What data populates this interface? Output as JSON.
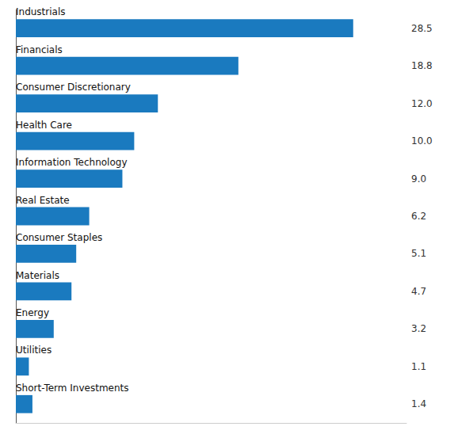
{
  "chart_data": {
    "type": "bar",
    "orientation": "horizontal",
    "categories": [
      "Industrials",
      "Financials",
      "Consumer Discretionary",
      "Health Care",
      "Information Technology",
      "Real Estate",
      "Consumer Staples",
      "Materials",
      "Energy",
      "Utilities",
      "Short-Term Investments"
    ],
    "values": [
      28.5,
      18.8,
      12.0,
      10.0,
      9.0,
      6.2,
      5.1,
      4.7,
      3.2,
      1.1,
      1.4
    ],
    "value_labels": [
      "28.5",
      "18.8",
      "12.0",
      "10.0",
      "9.0",
      "6.2",
      "5.1",
      "4.7",
      "3.2",
      "1.1",
      "1.4"
    ],
    "data_labels": true,
    "color": "#1a7abf",
    "xlim": [
      0,
      33
    ],
    "grid": false,
    "tick_labels": false
  }
}
